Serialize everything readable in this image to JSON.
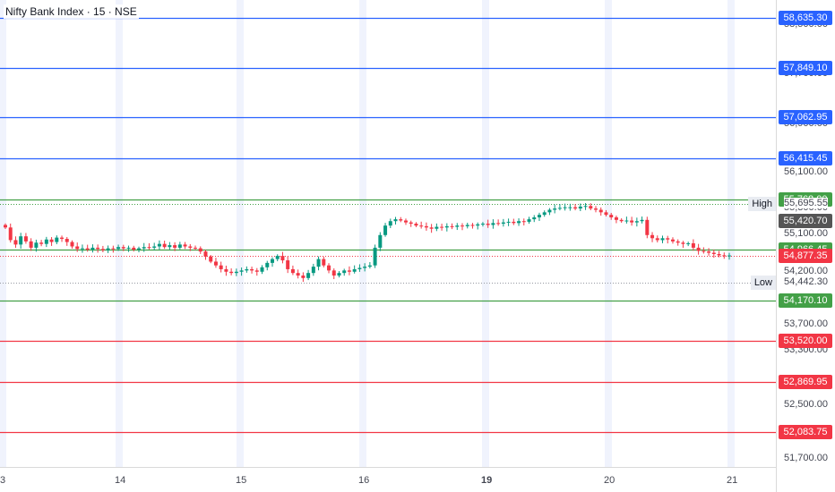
{
  "title": "Nifty Bank Index · 15 · NSE",
  "price_axis_ticks": [
    "58,500.00",
    "57,700.00",
    "56,900.00",
    "56,100.00",
    "55,300.00",
    "55,100.00",
    "54,200.00",
    "53,700.00",
    "53,300.00",
    "52,500.00",
    "51,700.00"
  ],
  "time_axis_ticks": [
    "3",
    "14",
    "15",
    "16",
    "19",
    "20",
    "21"
  ],
  "levels": [
    {
      "value": 58635.3,
      "label": "58,635.30",
      "color": "#2962ff"
    },
    {
      "value": 57849.1,
      "label": "57,849.10",
      "color": "#2962ff"
    },
    {
      "value": 57062.95,
      "label": "57,062.95",
      "color": "#2962ff"
    },
    {
      "value": 56415.45,
      "label": "56,415.45",
      "color": "#2962ff"
    },
    {
      "value": 55768.0,
      "label": "55,768.00",
      "color": "#43a047"
    },
    {
      "value": 54966.45,
      "label": "54,966.45",
      "color": "#43a047"
    },
    {
      "value": 54170.1,
      "label": "54,170.10",
      "color": "#43a047"
    },
    {
      "value": 53520.0,
      "label": "53,520.00",
      "color": "#f23645"
    },
    {
      "value": 52869.95,
      "label": "52,869.95",
      "color": "#f23645"
    },
    {
      "value": 52083.75,
      "label": "52,083.75",
      "color": "#f23645"
    }
  ],
  "high": {
    "label": "High",
    "value": "55,695.55"
  },
  "low": {
    "label": "Low",
    "value": "54,442.30"
  },
  "prev_close": {
    "value": "55,420.70",
    "color": "#555555"
  },
  "last_price": {
    "value": "54,877.35",
    "color": "#f23645"
  },
  "colors": {
    "up": "#089981",
    "down": "#f23645",
    "session_band": "#e9eefc"
  },
  "chart_data": {
    "type": "candlestick",
    "symbol": "Nifty Bank Index",
    "interval": "15",
    "exchange": "NSE",
    "x_ticks": [
      "3",
      "14",
      "15",
      "16",
      "19",
      "20",
      "21"
    ],
    "closes": [
      55320,
      55120,
      55050,
      55180,
      55100,
      55000,
      55080,
      55060,
      55130,
      55090,
      55160,
      55140,
      55090,
      55020,
      54980,
      54990,
      54970,
      55000,
      54980,
      54960,
      54990,
      54980,
      55010,
      54990,
      55000,
      54970,
      54990,
      55010,
      55000,
      55020,
      55060,
      55010,
      55040,
      55000,
      55050,
      55020,
      55000,
      54990,
      54940,
      54860,
      54780,
      54720,
      54660,
      54620,
      54600,
      54620,
      54640,
      54660,
      54640,
      54620,
      54690,
      54760,
      54820,
      54870,
      54800,
      54660,
      54600,
      54560,
      54520,
      54600,
      54700,
      54820,
      54720,
      54640,
      54560,
      54600,
      54640,
      54620,
      54660,
      54680,
      54700,
      54720,
      55000,
      55200,
      55350,
      55420,
      55450,
      55430,
      55400,
      55380,
      55350,
      55340,
      55320,
      55300,
      55330,
      55320,
      55340,
      55330,
      55350,
      55340,
      55360,
      55350,
      55370,
      55380,
      55360,
      55390,
      55380,
      55400,
      55410,
      55390,
      55420,
      55410,
      55450,
      55480,
      55520,
      55560,
      55600,
      55620,
      55630,
      55640,
      55640,
      55620,
      55650,
      55660,
      55620,
      55600,
      55560,
      55520,
      55480,
      55440,
      55420,
      55430,
      55400,
      55420,
      55440,
      55200,
      55150,
      55120,
      55150,
      55130,
      55100,
      55080,
      55060,
      55070,
      55000,
      54950,
      54940,
      54920,
      54900,
      54880,
      54870,
      54877.35
    ]
  }
}
